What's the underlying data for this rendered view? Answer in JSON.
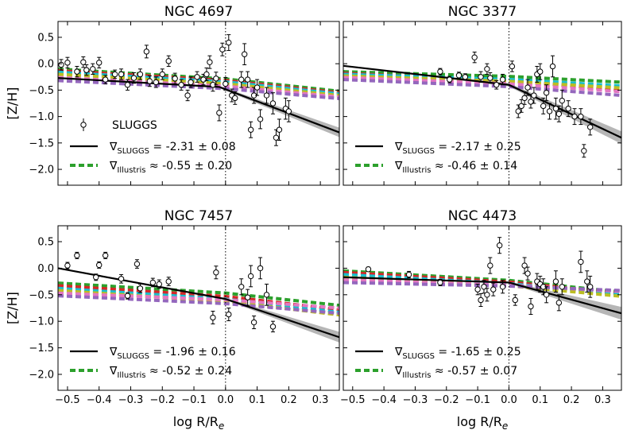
{
  "ylabel": "[Z/H]",
  "xlabel": "log R/R",
  "xlabel_sub": "e",
  "legend_symbol": "∇",
  "colors": {
    "sluggs_line": "#000000",
    "band": "#9e9e9e",
    "illustris": [
      "#2ca02c",
      "#d62728",
      "#17becf",
      "#bcbd22",
      "#e377c2",
      "#9467bd"
    ]
  },
  "chart_data": [
    {
      "type": "scatter",
      "title": "NGC 4697",
      "xlim": [
        -0.53,
        0.36
      ],
      "ylim": [
        -2.3,
        0.8
      ],
      "xticks": [
        -0.5,
        -0.4,
        -0.3,
        -0.2,
        -0.1,
        0.0,
        0.1,
        0.2,
        0.3
      ],
      "xtick_labels": [
        "−0.5",
        "−0.4",
        "−0.3",
        "−0.2",
        "−0.1",
        "0.0",
        "0.1",
        "0.2",
        "0.3"
      ],
      "yticks": [
        0.5,
        0.0,
        -0.5,
        -1.0,
        -1.5,
        -2.0
      ],
      "ytick_labels": [
        "0.5",
        "0.0",
        "−0.5",
        "−1.0",
        "−1.5",
        "−2.0"
      ],
      "show_xticklabels": false,
      "show_ylabels": true,
      "points": [
        {
          "x": -0.52,
          "y": -0.02,
          "err": 0.1
        },
        {
          "x": -0.5,
          "y": 0.02,
          "err": 0.1
        },
        {
          "x": -0.47,
          "y": -0.15,
          "err": 0.1
        },
        {
          "x": -0.45,
          "y": 0.03,
          "err": 0.1
        },
        {
          "x": -0.44,
          "y": -0.12,
          "err": 0.1
        },
        {
          "x": -0.42,
          "y": -0.1,
          "err": 0.1
        },
        {
          "x": -0.4,
          "y": 0.02,
          "err": 0.1
        },
        {
          "x": -0.38,
          "y": -0.3,
          "err": 0.08
        },
        {
          "x": -0.35,
          "y": -0.2,
          "err": 0.08
        },
        {
          "x": -0.33,
          "y": -0.2,
          "err": 0.1
        },
        {
          "x": -0.31,
          "y": -0.4,
          "err": 0.1
        },
        {
          "x": -0.29,
          "y": -0.27,
          "err": 0.1
        },
        {
          "x": -0.27,
          "y": -0.2,
          "err": 0.1
        },
        {
          "x": -0.25,
          "y": 0.23,
          "err": 0.12
        },
        {
          "x": -0.24,
          "y": -0.33,
          "err": 0.1
        },
        {
          "x": -0.22,
          "y": -0.35,
          "err": 0.1
        },
        {
          "x": -0.2,
          "y": -0.2,
          "err": 0.1
        },
        {
          "x": -0.18,
          "y": 0.05,
          "err": 0.1
        },
        {
          "x": -0.16,
          "y": -0.28,
          "err": 0.1
        },
        {
          "x": -0.14,
          "y": -0.4,
          "err": 0.1
        },
        {
          "x": -0.12,
          "y": -0.6,
          "err": 0.1
        },
        {
          "x": -0.11,
          "y": -0.35,
          "err": 0.1
        },
        {
          "x": -0.09,
          "y": -0.25,
          "err": 0.1
        },
        {
          "x": -0.07,
          "y": -0.3,
          "err": 0.1
        },
        {
          "x": -0.06,
          "y": -0.2,
          "err": 0.12
        },
        {
          "x": -0.05,
          "y": 0.03,
          "err": 0.12
        },
        {
          "x": -0.04,
          "y": -0.4,
          "err": 0.12
        },
        {
          "x": -0.03,
          "y": -0.28,
          "err": 0.12
        },
        {
          "x": -0.02,
          "y": -0.93,
          "err": 0.15
        },
        {
          "x": -0.01,
          "y": 0.27,
          "err": 0.12
        },
        {
          "x": 0.0,
          "y": -0.38,
          "err": 0.12
        },
        {
          "x": 0.01,
          "y": 0.4,
          "err": 0.15
        },
        {
          "x": 0.02,
          "y": -0.6,
          "err": 0.12
        },
        {
          "x": 0.03,
          "y": -0.65,
          "err": 0.12
        },
        {
          "x": 0.05,
          "y": -0.3,
          "err": 0.15
        },
        {
          "x": 0.06,
          "y": 0.18,
          "err": 0.2
        },
        {
          "x": 0.07,
          "y": -0.3,
          "err": 0.15
        },
        {
          "x": 0.08,
          "y": -1.25,
          "err": 0.15
        },
        {
          "x": 0.09,
          "y": -0.6,
          "err": 0.15
        },
        {
          "x": 0.1,
          "y": -0.45,
          "err": 0.15
        },
        {
          "x": 0.11,
          "y": -1.05,
          "err": 0.18
        },
        {
          "x": 0.13,
          "y": -0.6,
          "err": 0.15
        },
        {
          "x": 0.15,
          "y": -0.75,
          "err": 0.2
        },
        {
          "x": 0.16,
          "y": -1.4,
          "err": 0.15
        },
        {
          "x": 0.17,
          "y": -1.25,
          "err": 0.2
        },
        {
          "x": 0.19,
          "y": -0.85,
          "err": 0.2
        },
        {
          "x": 0.2,
          "y": -0.9,
          "err": 0.2
        }
      ],
      "fit": {
        "x": [
          -0.53,
          -0.02,
          0.36
        ],
        "y": [
          -0.27,
          -0.44,
          -1.3
        ],
        "band": [
          0.0,
          0.02,
          0.09
        ]
      },
      "illustris_start": [
        -0.1,
        -0.13,
        -0.16,
        -0.2,
        -0.26,
        -0.32
      ],
      "illustris_end": [
        -0.52,
        -0.55,
        -0.57,
        -0.6,
        -0.63,
        -0.66
      ],
      "legend": {
        "show_points_label": true,
        "points_label": "SLUGGS",
        "sluggs_sub": "SLUGGS",
        "sluggs_text": " = -2.31 ± 0.08",
        "illustris_sub": "Illustris",
        "illustris_text": " ≈ -0.55 ± 0.20"
      }
    },
    {
      "type": "scatter",
      "title": "NGC 3377",
      "xlim": [
        -0.53,
        0.36
      ],
      "ylim": [
        -2.3,
        0.8
      ],
      "xticks": [
        -0.5,
        -0.4,
        -0.3,
        -0.2,
        -0.1,
        0.0,
        0.1,
        0.2,
        0.3
      ],
      "xtick_labels": [
        "−0.5",
        "−0.4",
        "−0.3",
        "−0.2",
        "−0.1",
        "0.0",
        "0.1",
        "0.2",
        "0.3"
      ],
      "yticks": [
        0.5,
        0.0,
        -0.5,
        -1.0,
        -1.5,
        -2.0
      ],
      "ytick_labels": [
        "0.5",
        "0.0",
        "−0.5",
        "−1.0",
        "−1.5",
        "−2.0"
      ],
      "show_xticklabels": false,
      "show_ylabels": false,
      "points": [
        {
          "x": -0.22,
          "y": -0.15,
          "err": 0.06
        },
        {
          "x": -0.19,
          "y": -0.3,
          "err": 0.06
        },
        {
          "x": -0.16,
          "y": -0.22,
          "err": 0.06
        },
        {
          "x": -0.14,
          "y": -0.25,
          "err": 0.06
        },
        {
          "x": -0.11,
          "y": 0.12,
          "err": 0.1
        },
        {
          "x": -0.09,
          "y": -0.25,
          "err": 0.1
        },
        {
          "x": -0.07,
          "y": -0.1,
          "err": 0.1
        },
        {
          "x": -0.06,
          "y": -0.27,
          "err": 0.1
        },
        {
          "x": -0.04,
          "y": -0.4,
          "err": 0.08
        },
        {
          "x": -0.02,
          "y": -0.3,
          "err": 0.1
        },
        {
          "x": 0.01,
          "y": -0.05,
          "err": 0.1
        },
        {
          "x": 0.03,
          "y": -0.9,
          "err": 0.12
        },
        {
          "x": 0.04,
          "y": -0.8,
          "err": 0.12
        },
        {
          "x": 0.05,
          "y": -0.65,
          "err": 0.12
        },
        {
          "x": 0.06,
          "y": -0.45,
          "err": 0.15
        },
        {
          "x": 0.07,
          "y": -0.72,
          "err": 0.12
        },
        {
          "x": 0.08,
          "y": -0.6,
          "err": 0.15
        },
        {
          "x": 0.09,
          "y": -0.2,
          "err": 0.15
        },
        {
          "x": 0.1,
          "y": -0.15,
          "err": 0.15
        },
        {
          "x": 0.11,
          "y": -0.8,
          "err": 0.15
        },
        {
          "x": 0.12,
          "y": -0.55,
          "err": 0.15
        },
        {
          "x": 0.13,
          "y": -0.9,
          "err": 0.15
        },
        {
          "x": 0.14,
          "y": -0.05,
          "err": 0.2
        },
        {
          "x": 0.15,
          "y": -0.85,
          "err": 0.2
        },
        {
          "x": 0.16,
          "y": -0.95,
          "err": 0.15
        },
        {
          "x": 0.17,
          "y": -0.7,
          "err": 0.2
        },
        {
          "x": 0.19,
          "y": -0.85,
          "err": 0.15
        },
        {
          "x": 0.21,
          "y": -1.0,
          "err": 0.15
        },
        {
          "x": 0.23,
          "y": -1.0,
          "err": 0.15
        },
        {
          "x": 0.24,
          "y": -1.65,
          "err": 0.12
        },
        {
          "x": 0.26,
          "y": -1.2,
          "err": 0.15
        }
      ],
      "fit": {
        "x": [
          -0.53,
          0.0,
          0.36
        ],
        "y": [
          -0.04,
          -0.4,
          -1.4
        ],
        "band": [
          0.0,
          0.03,
          0.12
        ]
      },
      "illustris_start": [
        -0.15,
        -0.18,
        -0.2,
        -0.23,
        -0.26,
        -0.3
      ],
      "illustris_end": [
        -0.35,
        -0.5,
        -0.42,
        -0.46,
        -0.53,
        -0.6
      ],
      "legend": {
        "show_points_label": false,
        "points_label": "",
        "sluggs_sub": "SLUGGS",
        "sluggs_text": " = -2.17 ± 0.25",
        "illustris_sub": "Illustris",
        "illustris_text": " ≈ -0.46 ± 0.14"
      }
    },
    {
      "type": "scatter",
      "title": "NGC 7457",
      "xlim": [
        -0.53,
        0.36
      ],
      "ylim": [
        -2.3,
        0.8
      ],
      "xticks": [
        -0.5,
        -0.4,
        -0.3,
        -0.2,
        -0.1,
        0.0,
        0.1,
        0.2,
        0.3
      ],
      "xtick_labels": [
        "−0.5",
        "−0.4",
        "−0.3",
        "−0.2",
        "−0.1",
        "0.0",
        "0.1",
        "0.2",
        "0.3"
      ],
      "yticks": [
        0.5,
        0.0,
        -0.5,
        -1.0,
        -1.5,
        -2.0
      ],
      "ytick_labels": [
        "0.5",
        "0.0",
        "−0.5",
        "−1.0",
        "−1.5",
        "−2.0"
      ],
      "show_xticklabels": true,
      "show_ylabels": true,
      "points": [
        {
          "x": -0.5,
          "y": 0.05,
          "err": 0.06
        },
        {
          "x": -0.47,
          "y": 0.24,
          "err": 0.06
        },
        {
          "x": -0.41,
          "y": -0.17,
          "err": 0.06
        },
        {
          "x": -0.4,
          "y": 0.06,
          "err": 0.06
        },
        {
          "x": -0.38,
          "y": 0.24,
          "err": 0.06
        },
        {
          "x": -0.33,
          "y": -0.2,
          "err": 0.08
        },
        {
          "x": -0.31,
          "y": -0.52,
          "err": 0.06
        },
        {
          "x": -0.28,
          "y": 0.08,
          "err": 0.08
        },
        {
          "x": -0.27,
          "y": -0.38,
          "err": 0.08
        },
        {
          "x": -0.23,
          "y": -0.27,
          "err": 0.08
        },
        {
          "x": -0.21,
          "y": -0.3,
          "err": 0.08
        },
        {
          "x": -0.18,
          "y": -0.25,
          "err": 0.08
        },
        {
          "x": -0.04,
          "y": -0.93,
          "err": 0.12
        },
        {
          "x": -0.03,
          "y": -0.08,
          "err": 0.12
        },
        {
          "x": 0.01,
          "y": -0.87,
          "err": 0.12
        },
        {
          "x": 0.05,
          "y": -0.35,
          "err": 0.15
        },
        {
          "x": 0.07,
          "y": -0.55,
          "err": 0.15
        },
        {
          "x": 0.08,
          "y": -0.15,
          "err": 0.2
        },
        {
          "x": 0.09,
          "y": -1.02,
          "err": 0.12
        },
        {
          "x": 0.11,
          "y": 0.0,
          "err": 0.2
        },
        {
          "x": 0.13,
          "y": -0.5,
          "err": 0.2
        },
        {
          "x": 0.15,
          "y": -1.1,
          "err": 0.1
        }
      ],
      "fit": {
        "x": [
          -0.53,
          0.0,
          0.36
        ],
        "y": [
          0.0,
          -0.58,
          -1.3
        ],
        "band": [
          0.0,
          0.02,
          0.1
        ]
      },
      "illustris_start": [
        -0.28,
        -0.33,
        -0.38,
        -0.42,
        -0.47,
        -0.52
      ],
      "illustris_end": [
        -0.7,
        -0.78,
        -0.83,
        -0.88,
        -0.75,
        -0.85
      ],
      "legend": {
        "show_points_label": false,
        "points_label": "",
        "sluggs_sub": "SLUGGS",
        "sluggs_text": " = -1.96 ± 0.16",
        "illustris_sub": "Illustris",
        "illustris_text": " ≈ -0.52 ± 0.24"
      }
    },
    {
      "type": "scatter",
      "title": "NGC 4473",
      "xlim": [
        -0.53,
        0.36
      ],
      "ylim": [
        -2.3,
        0.8
      ],
      "xticks": [
        -0.5,
        -0.4,
        -0.3,
        -0.2,
        -0.1,
        0.0,
        0.1,
        0.2,
        0.3
      ],
      "xtick_labels": [
        "−0.5",
        "−0.4",
        "−0.3",
        "−0.2",
        "−0.1",
        "0.0",
        "0.1",
        "0.2",
        "0.3"
      ],
      "yticks": [
        0.5,
        0.0,
        -0.5,
        -1.0,
        -1.5,
        -2.0
      ],
      "ytick_labels": [
        "0.5",
        "0.0",
        "−0.5",
        "−1.0",
        "−1.5",
        "−2.0"
      ],
      "show_xticklabels": true,
      "show_ylabels": false,
      "points": [
        {
          "x": -0.45,
          "y": -0.02,
          "err": 0.04
        },
        {
          "x": -0.32,
          "y": -0.12,
          "err": 0.06
        },
        {
          "x": -0.22,
          "y": -0.27,
          "err": 0.06
        },
        {
          "x": -0.1,
          "y": -0.4,
          "err": 0.1
        },
        {
          "x": -0.09,
          "y": -0.6,
          "err": 0.12
        },
        {
          "x": -0.08,
          "y": -0.35,
          "err": 0.12
        },
        {
          "x": -0.07,
          "y": -0.5,
          "err": 0.12
        },
        {
          "x": -0.06,
          "y": 0.05,
          "err": 0.15
        },
        {
          "x": -0.05,
          "y": -0.4,
          "err": 0.12
        },
        {
          "x": -0.03,
          "y": 0.43,
          "err": 0.15
        },
        {
          "x": -0.02,
          "y": -0.35,
          "err": 0.12
        },
        {
          "x": 0.02,
          "y": -0.6,
          "err": 0.1
        },
        {
          "x": 0.05,
          "y": 0.05,
          "err": 0.15
        },
        {
          "x": 0.06,
          "y": -0.1,
          "err": 0.12
        },
        {
          "x": 0.07,
          "y": -0.72,
          "err": 0.15
        },
        {
          "x": 0.09,
          "y": -0.25,
          "err": 0.15
        },
        {
          "x": 0.1,
          "y": -0.3,
          "err": 0.15
        },
        {
          "x": 0.11,
          "y": -0.35,
          "err": 0.15
        },
        {
          "x": 0.12,
          "y": -0.5,
          "err": 0.15
        },
        {
          "x": 0.15,
          "y": -0.25,
          "err": 0.2
        },
        {
          "x": 0.16,
          "y": -0.65,
          "err": 0.15
        },
        {
          "x": 0.17,
          "y": -0.35,
          "err": 0.15
        },
        {
          "x": 0.23,
          "y": 0.12,
          "err": 0.2
        },
        {
          "x": 0.25,
          "y": -0.25,
          "err": 0.2
        },
        {
          "x": 0.26,
          "y": -0.35,
          "err": 0.2
        }
      ],
      "fit": {
        "x": [
          -0.53,
          0.0,
          0.36
        ],
        "y": [
          -0.17,
          -0.27,
          -0.85
        ],
        "band": [
          0.0,
          0.02,
          0.12
        ]
      },
      "illustris_start": [
        -0.05,
        -0.08,
        -0.12,
        -0.17,
        -0.22,
        -0.27
      ],
      "illustris_end": [
        -0.45,
        -0.48,
        -0.5,
        -0.53,
        -0.44,
        -0.42
      ],
      "legend": {
        "show_points_label": false,
        "points_label": "",
        "sluggs_sub": "SLUGGS",
        "sluggs_text": " = -1.65 ± 0.25",
        "illustris_sub": "Illustris",
        "illustris_text": " ≈ -0.57 ± 0.07"
      }
    }
  ]
}
